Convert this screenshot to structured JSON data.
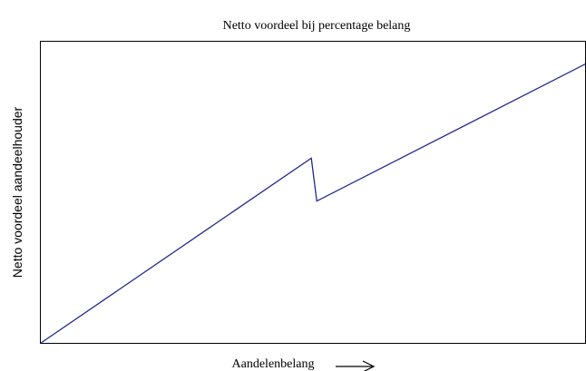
{
  "chart_data": {
    "type": "line",
    "title": "Netto voordeel bij percentage belang",
    "x_label": "Aandelenbelang",
    "y_label": "Netto voordeel aandeelhouder",
    "x": [
      0,
      49.7,
      50.7,
      100
    ],
    "series": [
      {
        "color": "#1f2a8a",
        "values": [
          0,
          61.3,
          47.1,
          92.5
        ]
      }
    ],
    "xlim": [
      0,
      100
    ],
    "ylim": [
      0,
      100
    ]
  }
}
